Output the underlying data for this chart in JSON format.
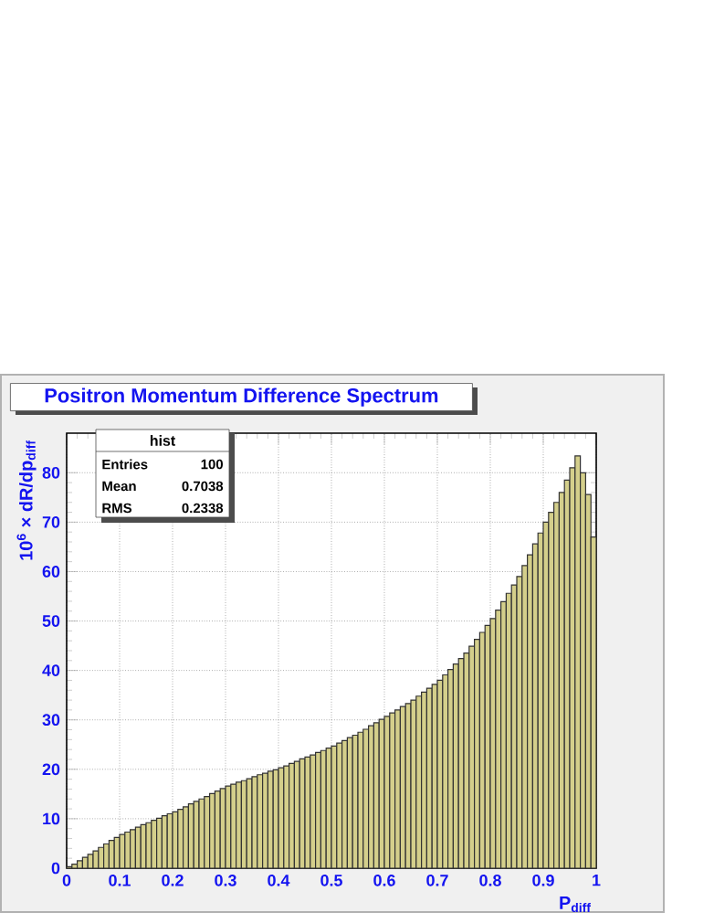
{
  "chart_data": {
    "type": "histogram",
    "title": "Positron Momentum Difference Spectrum",
    "xlabel": "P$_{diff}$",
    "ylabel": "10$^{6}$ × dR/dp$_{diff}$",
    "bins": [
      0,
      0.01,
      0.02,
      0.03,
      0.04,
      0.05,
      0.06,
      0.07,
      0.08,
      0.09,
      0.1,
      0.11,
      0.12,
      0.13,
      0.14,
      0.15,
      0.16,
      0.17,
      0.18,
      0.19,
      0.2,
      0.21,
      0.22,
      0.23,
      0.24,
      0.25,
      0.26,
      0.27,
      0.28,
      0.29,
      0.3,
      0.31,
      0.32,
      0.33,
      0.34,
      0.35,
      0.36,
      0.37,
      0.38,
      0.39,
      0.4,
      0.41,
      0.42,
      0.43,
      0.44,
      0.45,
      0.46,
      0.47,
      0.48,
      0.49,
      0.5,
      0.51,
      0.52,
      0.53,
      0.54,
      0.55,
      0.56,
      0.57,
      0.58,
      0.59,
      0.6,
      0.61,
      0.62,
      0.63,
      0.64,
      0.65,
      0.66,
      0.67,
      0.68,
      0.69,
      0.7,
      0.71,
      0.72,
      0.73,
      0.74,
      0.75,
      0.76,
      0.77,
      0.78,
      0.79,
      0.8,
      0.81,
      0.82,
      0.83,
      0.84,
      0.85,
      0.86,
      0.87,
      0.88,
      0.89,
      0.9,
      0.91,
      0.92,
      0.93,
      0.94,
      0.95,
      0.96,
      0.97,
      0.98,
      0.99,
      1
    ],
    "values": [
      0.3,
      0.8,
      1.5,
      2.2,
      2.8,
      3.5,
      4.2,
      4.9,
      5.6,
      6.2,
      6.8,
      7.3,
      7.8,
      8.3,
      8.8,
      9.2,
      9.7,
      10.1,
      10.6,
      11.0,
      11.4,
      11.9,
      12.4,
      13.0,
      13.5,
      14.0,
      14.5,
      15.1,
      15.6,
      16.1,
      16.6,
      17.0,
      17.4,
      17.7,
      18.1,
      18.5,
      18.9,
      19.2,
      19.6,
      19.9,
      20.3,
      20.7,
      21.2,
      21.6,
      22.1,
      22.5,
      22.9,
      23.4,
      23.8,
      24.3,
      24.7,
      25.3,
      25.8,
      26.4,
      26.9,
      27.5,
      28.1,
      28.8,
      29.4,
      30.1,
      30.7,
      31.4,
      32.0,
      32.7,
      33.3,
      34.0,
      34.8,
      35.6,
      36.4,
      37.2,
      38.0,
      39.1,
      40.2,
      41.3,
      42.4,
      43.5,
      44.9,
      46.3,
      47.7,
      49.1,
      50.5,
      52.2,
      53.9,
      55.6,
      57.3,
      59.0,
      61.2,
      63.4,
      65.6,
      67.8,
      70.0,
      72.0,
      74.0,
      76.0,
      78.5,
      81.0,
      83.4,
      80.0,
      75.6,
      67.0
    ],
    "color": "#d4cf8b",
    "xlim": [
      0,
      1
    ],
    "ylim": [
      0,
      88
    ],
    "xticks": [
      0,
      0.1,
      0.2,
      0.3,
      0.4,
      0.5,
      0.6,
      0.7,
      0.8,
      0.9,
      1
    ],
    "yticks": [
      0,
      10,
      20,
      30,
      40,
      50,
      60,
      70,
      80
    ],
    "grid": true,
    "annotations": [
      "hist",
      "Entries",
      "100",
      "Mean",
      "0.7038",
      "RMS",
      "0.2338"
    ]
  }
}
